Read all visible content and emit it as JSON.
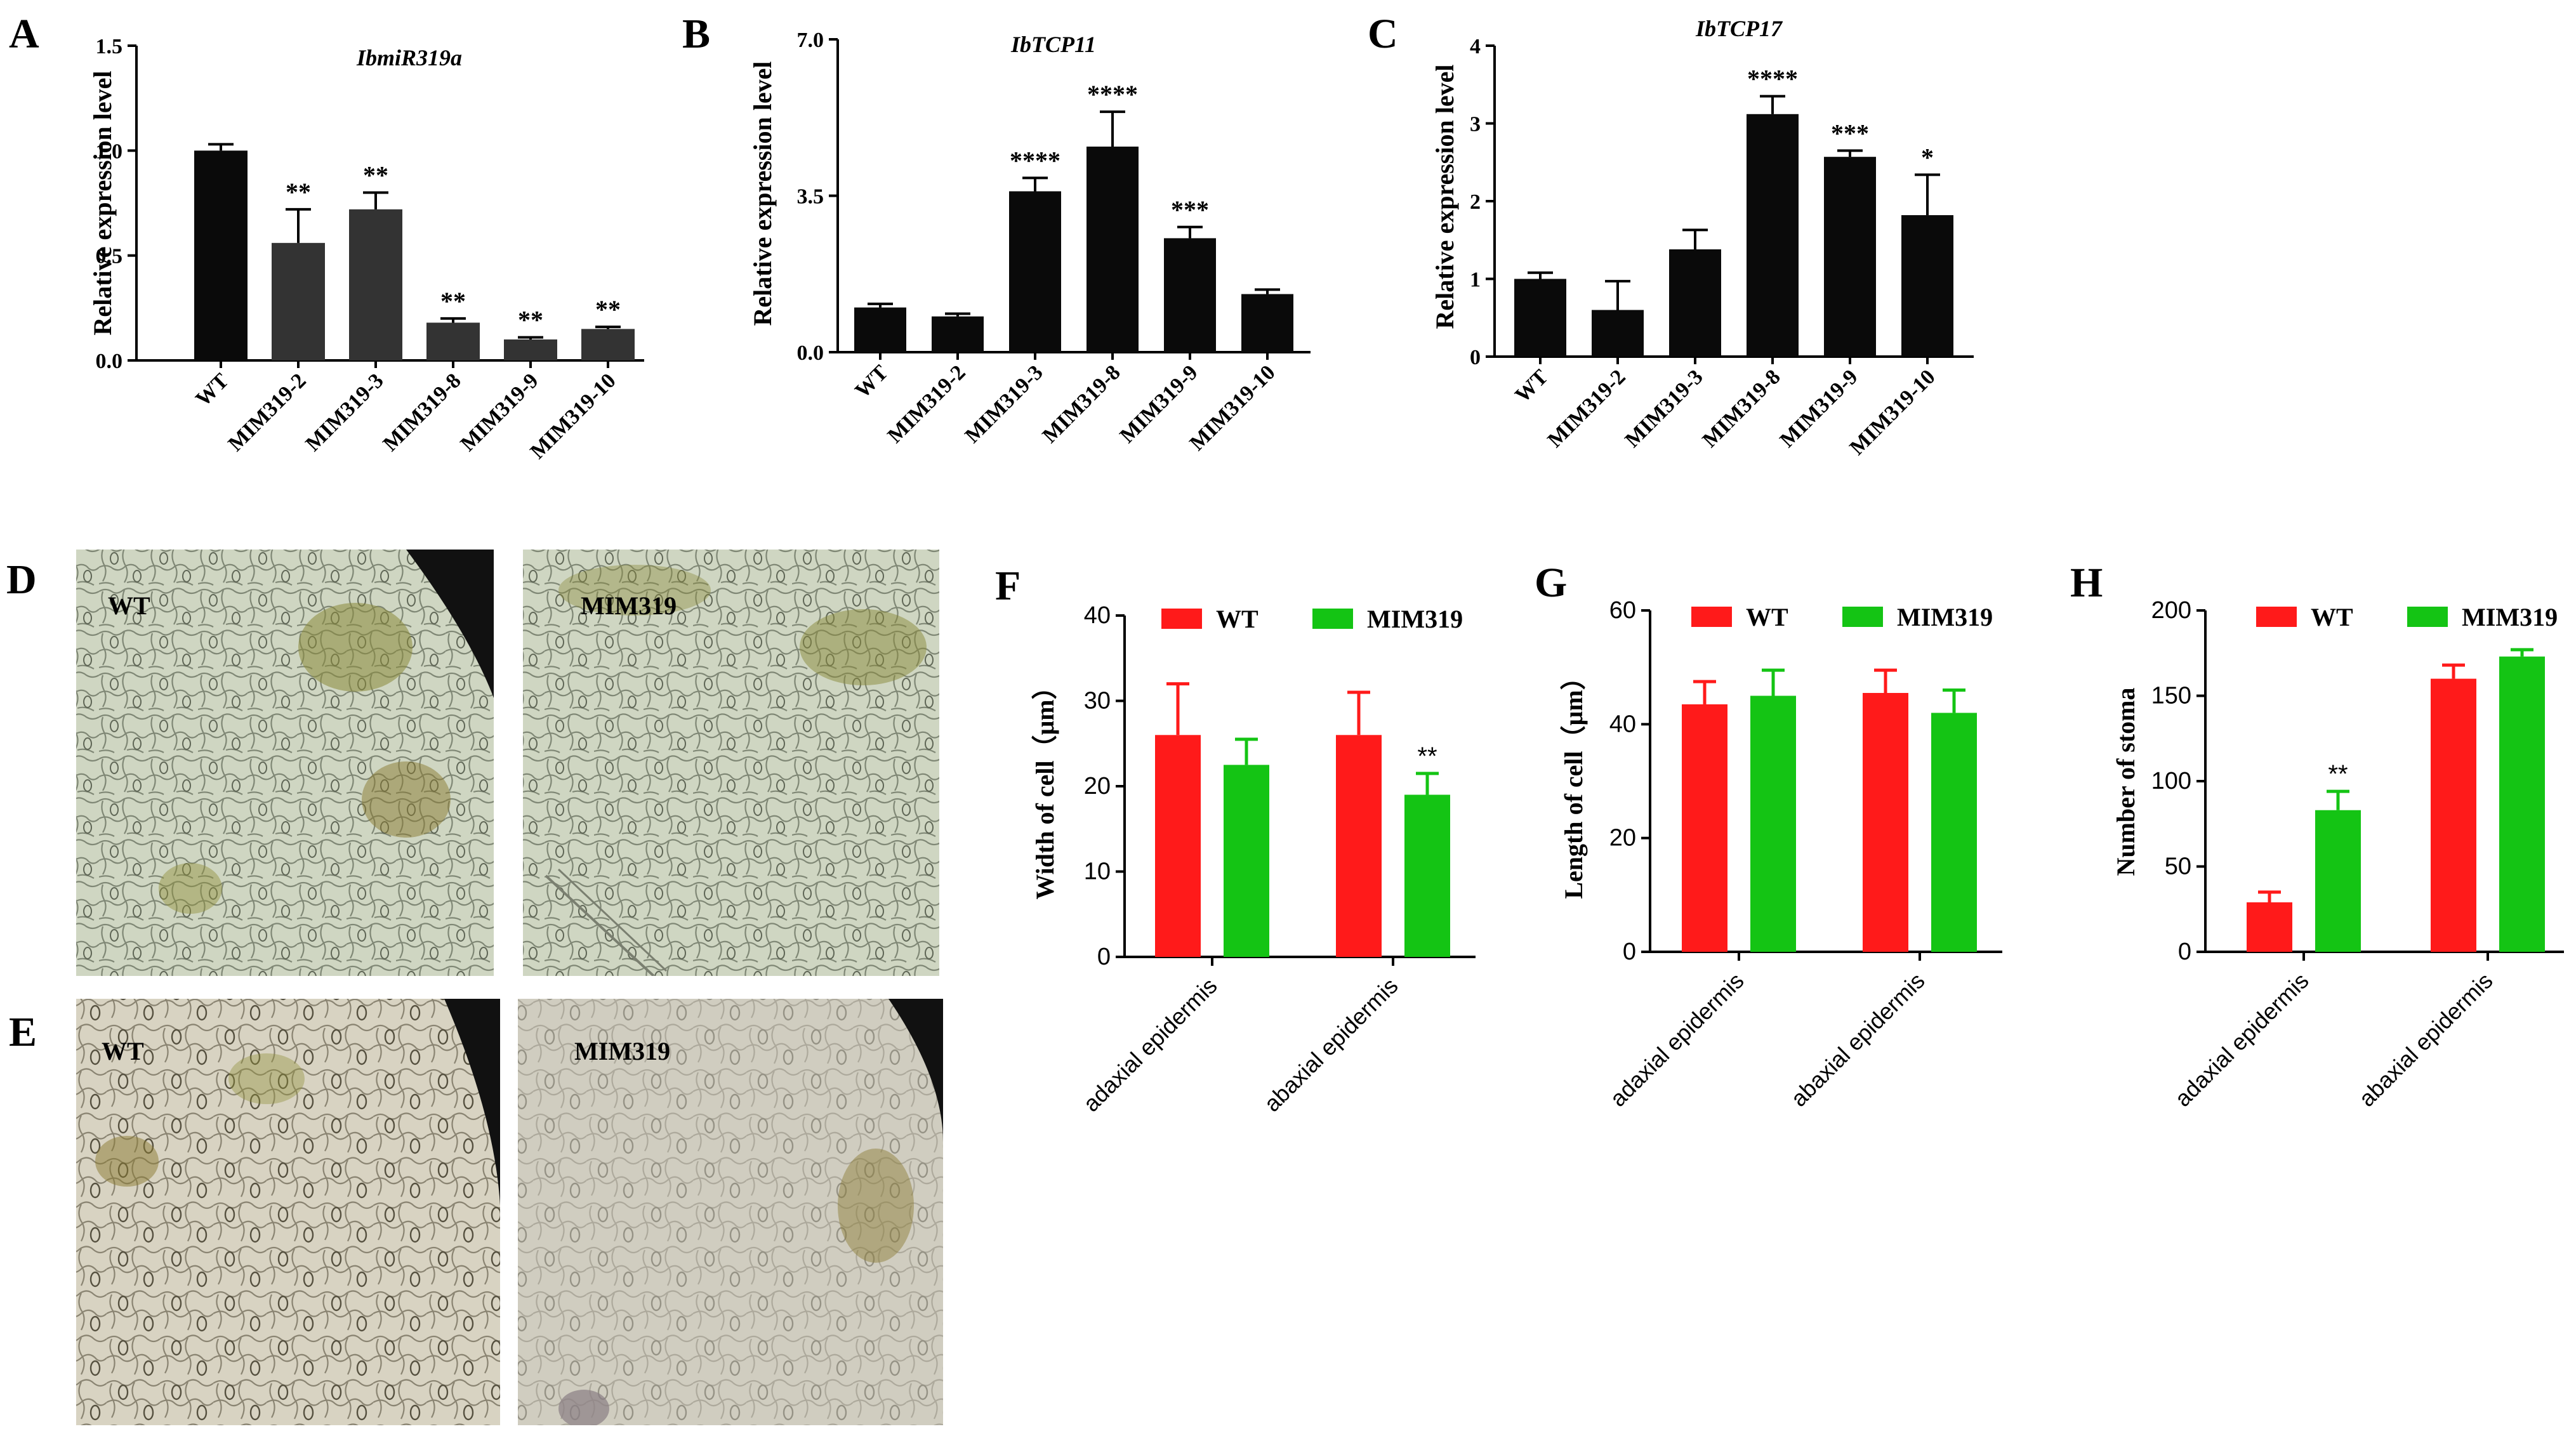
{
  "figure_panels": {
    "A": "A",
    "B": "B",
    "C": "C",
    "D": "D",
    "E": "E",
    "F": "F",
    "G": "G",
    "H": "H"
  },
  "micrographs": {
    "D_left": "WT",
    "D_right": "MIM319",
    "E_left": "WT",
    "E_right": "MIM319"
  },
  "colors": {
    "wt_red": "#ff1a1a",
    "mim_green": "#14c414",
    "bar_black": "#0a0a0a",
    "bar_dark": "#333333"
  },
  "chart_data": [
    {
      "panel": "A",
      "type": "bar",
      "title": "IbmiR319a",
      "ylabel": "Relative expression level",
      "xlabel": "",
      "categories": [
        "WT",
        "MIM319-2",
        "MIM319-3",
        "MIM319-8",
        "MIM319-9",
        "MIM319-10"
      ],
      "values": [
        1.0,
        0.56,
        0.72,
        0.18,
        0.1,
        0.15
      ],
      "errors": [
        0.03,
        0.16,
        0.08,
        0.02,
        0.01,
        0.01
      ],
      "significance": [
        "",
        "**",
        "**",
        "**",
        "**",
        "**"
      ],
      "ylim": [
        0,
        1.5
      ],
      "yticks": [
        "0.0",
        "0.5",
        "1.0",
        "1.5"
      ],
      "ytick_values": [
        0,
        0.5,
        1.0,
        1.5
      ]
    },
    {
      "panel": "B",
      "type": "bar",
      "title": "IbTCP11",
      "ylabel": "Relative expression level",
      "xlabel": "",
      "categories": [
        "WT",
        "MIM319-2",
        "MIM319-3",
        "MIM319-8",
        "MIM319-9",
        "MIM319-10"
      ],
      "values": [
        1.0,
        0.8,
        3.6,
        4.6,
        2.55,
        1.3
      ],
      "errors": [
        0.08,
        0.06,
        0.3,
        0.78,
        0.25,
        0.1
      ],
      "significance": [
        "",
        "",
        "****",
        "****",
        "***",
        ""
      ],
      "ylim": [
        0,
        7.0
      ],
      "yticks": [
        "0.0",
        "3.5",
        "7.0"
      ],
      "ytick_values": [
        0,
        3.5,
        7.0
      ]
    },
    {
      "panel": "C",
      "type": "bar",
      "title": "IbTCP17",
      "ylabel": "Relative expression level",
      "xlabel": "",
      "categories": [
        "WT",
        "MIM319-2",
        "MIM319-3",
        "MIM319-8",
        "MIM319-9",
        "MIM319-10"
      ],
      "values": [
        1.0,
        0.6,
        1.38,
        3.12,
        2.57,
        1.82
      ],
      "errors": [
        0.08,
        0.37,
        0.25,
        0.23,
        0.08,
        0.52
      ],
      "significance": [
        "",
        "",
        "",
        "****",
        "***",
        "*"
      ],
      "ylim": [
        0,
        4
      ],
      "yticks": [
        "0",
        "1",
        "2",
        "3",
        "4"
      ],
      "ytick_values": [
        0,
        1,
        2,
        3,
        4
      ]
    },
    {
      "panel": "F",
      "type": "bar",
      "title": "",
      "ylabel": "Width of cell（μm）",
      "xlabel": "",
      "categories": [
        "adaxial epidermis",
        "abaxial epidermis"
      ],
      "series": [
        {
          "name": "WT",
          "values": [
            26,
            26
          ],
          "errors": [
            6,
            5
          ]
        },
        {
          "name": "MIM319",
          "values": [
            22.5,
            19
          ],
          "errors": [
            3,
            2.5
          ]
        }
      ],
      "significance": [
        [
          "",
          ""
        ],
        [
          "",
          "**"
        ]
      ],
      "ylim": [
        0,
        40
      ],
      "yticks": [
        "0",
        "10",
        "20",
        "30",
        "40"
      ],
      "ytick_values": [
        0,
        10,
        20,
        30,
        40
      ],
      "legend_position": "top"
    },
    {
      "panel": "G",
      "type": "bar",
      "title": "",
      "ylabel": "Length of cell（μm）",
      "xlabel": "",
      "categories": [
        "adaxial epidermis",
        "abaxial epidermis"
      ],
      "series": [
        {
          "name": "WT",
          "values": [
            43.5,
            45.5
          ],
          "errors": [
            4,
            4
          ]
        },
        {
          "name": "MIM319",
          "values": [
            45,
            42
          ],
          "errors": [
            4.5,
            4
          ]
        }
      ],
      "significance": [
        [
          "",
          ""
        ],
        [
          "",
          ""
        ]
      ],
      "ylim": [
        0,
        60
      ],
      "yticks": [
        "0",
        "20",
        "40",
        "60"
      ],
      "ytick_values": [
        0,
        20,
        40,
        60
      ],
      "legend_position": "top"
    },
    {
      "panel": "H",
      "type": "bar",
      "title": "",
      "ylabel": "Number of stoma",
      "xlabel": "",
      "categories": [
        "adaxial epidermis",
        "abaxial epidermis"
      ],
      "series": [
        {
          "name": "WT",
          "values": [
            29,
            160
          ],
          "errors": [
            6,
            8
          ]
        },
        {
          "name": "MIM319",
          "values": [
            83,
            173
          ],
          "errors": [
            11,
            4
          ]
        }
      ],
      "significance": [
        [
          "",
          ""
        ],
        [
          "**",
          ""
        ]
      ],
      "ylim": [
        0,
        200
      ],
      "yticks": [
        "0",
        "50",
        "100",
        "150",
        "200"
      ],
      "ytick_values": [
        0,
        50,
        100,
        150,
        200
      ],
      "legend_position": "top"
    }
  ]
}
